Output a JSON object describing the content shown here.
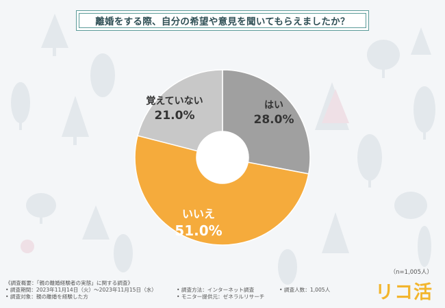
{
  "title": "離婚をする際、自分の希望や意見を聞いてもらえましたか？",
  "chart_data": {
    "type": "pie",
    "donut": true,
    "slices": [
      {
        "label": "はい",
        "value": 28.0,
        "value_label": "28.0%",
        "color": "#a0a0a0"
      },
      {
        "label": "いいえ",
        "value": 51.0,
        "value_label": "51.0%",
        "color": "#f5ab3c"
      },
      {
        "label": "覚えていない",
        "value": 21.0,
        "value_label": "21.0%",
        "color": "#c8c8c8"
      }
    ]
  },
  "sample_note": "（n=1,005人）",
  "logo_text": "リコ活",
  "footer": {
    "overview": "《調査概要：「親の離婚経験者の実態」に関する調査》",
    "period": "• 調査期間：2023年11月14日（火）〜2023年11月15日（水）",
    "subjects": "• 調査対象：親の離婚を経験した方",
    "method": "• 調査方法：インターネット調査",
    "provider": "• モニター提供元：ゼネラルリサーチ",
    "count": "• 調査人数：1,005人"
  }
}
